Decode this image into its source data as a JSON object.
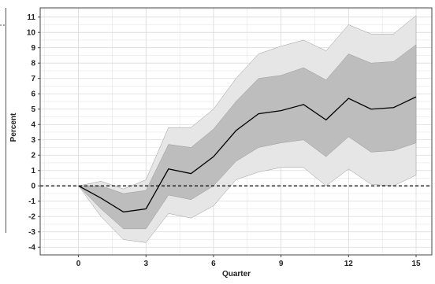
{
  "chart_data": {
    "type": "line",
    "title": "",
    "xlabel": "Quarter",
    "ylabel": "Percent",
    "xlim": [
      -1.7,
      15.7
    ],
    "ylim": [
      -4.5,
      11.6
    ],
    "x_ticks": [
      0,
      3,
      6,
      9,
      12,
      15
    ],
    "y_ticks": [
      -4,
      -3,
      -2,
      -1,
      0,
      1,
      2,
      3,
      4,
      5,
      6,
      7,
      8,
      9,
      10,
      11
    ],
    "grid": true,
    "x": [
      0,
      1,
      2,
      3,
      4,
      5,
      6,
      7,
      8,
      9,
      10,
      11,
      12,
      13,
      14,
      15
    ],
    "series": [
      {
        "values": [
          0,
          -0.8,
          -1.7,
          -1.5,
          1.1,
          0.8,
          1.9,
          3.6,
          4.7,
          4.9,
          5.3,
          4.3,
          5.7,
          5.0,
          5.1,
          5.8
        ]
      }
    ],
    "bands": [
      {
        "upper": [
          0,
          0.3,
          -0.2,
          0.4,
          3.8,
          3.8,
          5.0,
          7.0,
          8.6,
          9.1,
          9.5,
          8.8,
          10.5,
          9.9,
          9.9,
          11.1
        ],
        "lower": [
          0,
          -2.0,
          -3.5,
          -3.7,
          -1.8,
          -2.1,
          -1.3,
          0.4,
          0.9,
          1.2,
          1.2,
          0.0,
          1.1,
          0.1,
          0.0,
          0.7
        ]
      },
      {
        "upper": [
          0,
          0.0,
          -0.5,
          -0.3,
          2.7,
          2.5,
          3.7,
          5.5,
          7.0,
          7.2,
          7.7,
          6.9,
          8.6,
          8.0,
          8.1,
          9.2
        ],
        "lower": [
          0,
          -1.5,
          -2.8,
          -2.8,
          -0.6,
          -0.9,
          0.0,
          1.6,
          2.5,
          2.8,
          3.0,
          1.9,
          3.2,
          2.2,
          2.3,
          2.8
        ]
      }
    ],
    "reference_line": {
      "y": 0,
      "style": "dashed"
    },
    "colors": {
      "outer_band": "#e6e6e6",
      "inner_band": "#bdbdbd",
      "line": "#000000",
      "grid": "#d9d9d9",
      "axis": "#444444"
    }
  }
}
